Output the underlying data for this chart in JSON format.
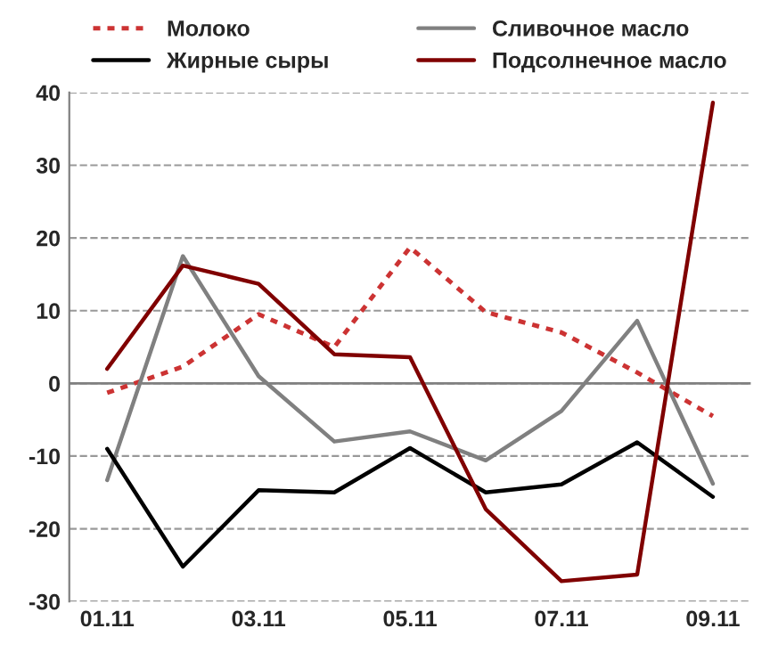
{
  "chart_data": {
    "type": "line",
    "categories": [
      "01.11",
      null,
      "03.11",
      null,
      "05.11",
      null,
      "07.11",
      null,
      "09.11"
    ],
    "series": [
      {
        "name": "Молоко",
        "color": "#cc3333",
        "line_style": "dashed",
        "values": [
          -1.3,
          2.3,
          9.5,
          5,
          18.7,
          9.8,
          7,
          1.5,
          -4.5
        ]
      },
      {
        "name": "Сливочное масло",
        "color": "#808080",
        "values": [
          -13.3,
          17.5,
          1,
          -8,
          -6.6,
          -10.6,
          -3.8,
          8.6,
          -13.8
        ]
      },
      {
        "name": "Жирные сыры",
        "color": "#000000",
        "values": [
          -9,
          -25.2,
          -14.7,
          -15,
          -8.9,
          -15,
          -13.9,
          -8.1,
          -15.6
        ]
      },
      {
        "name": "Подсолнечное масло",
        "color": "#800000",
        "values": [
          2,
          16.2,
          13.7,
          4,
          3.6,
          -17.3,
          -27.2,
          -26.3,
          38.6
        ]
      }
    ],
    "ylim": [
      -30,
      40
    ],
    "yticks": [
      -30,
      -20,
      -10,
      0,
      10,
      20,
      30,
      40
    ],
    "ref_lines": [
      {
        "axis": "y",
        "value": 0,
        "color": "#808080"
      }
    ],
    "grid": "y",
    "legend": "top",
    "marker": "none",
    "line_style": "solid"
  }
}
